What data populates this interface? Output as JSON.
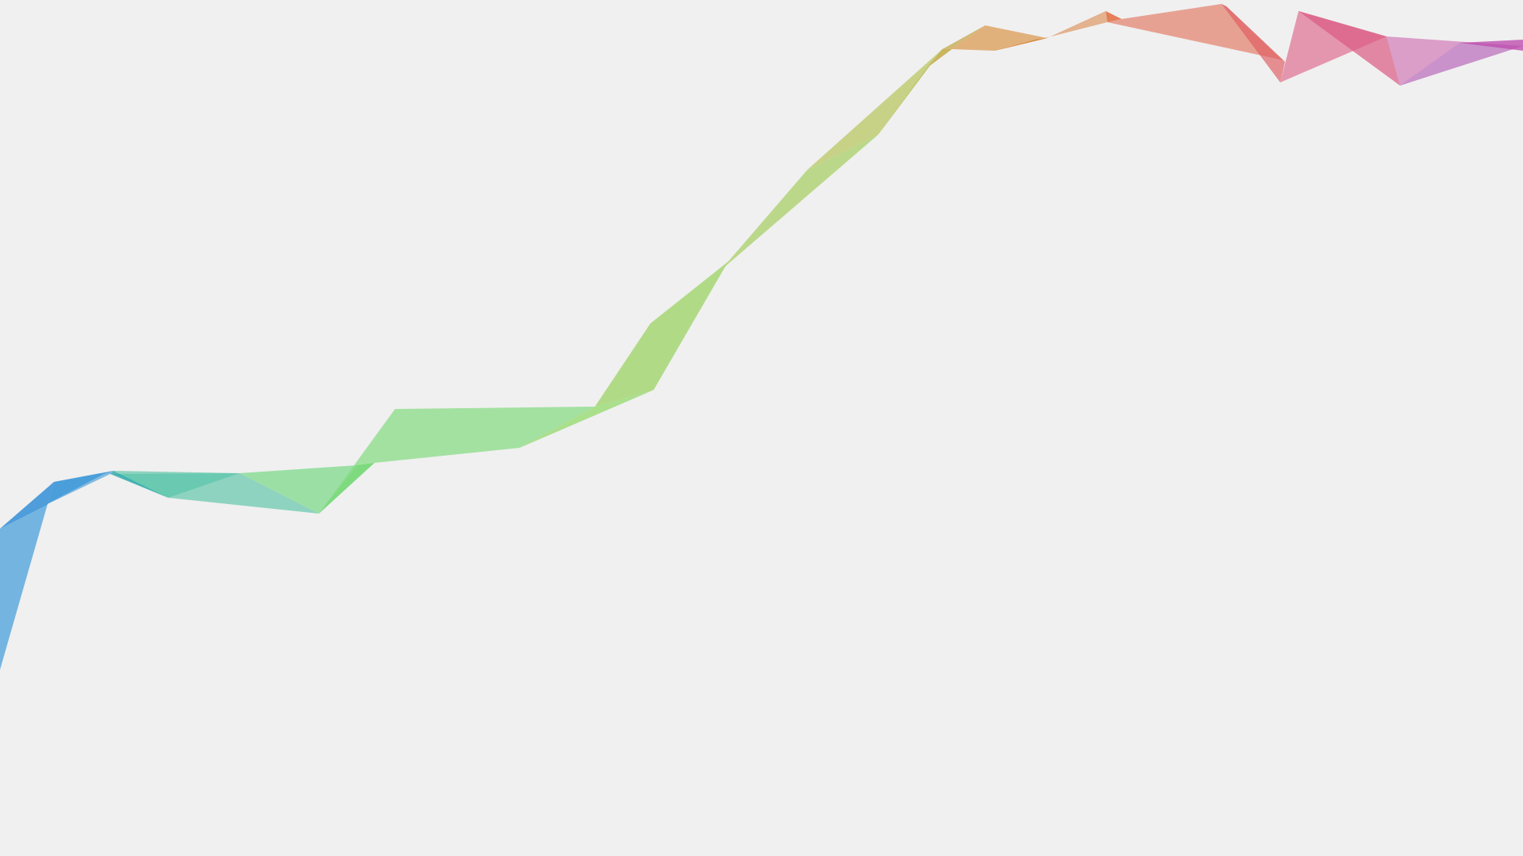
{
  "background": "#f0f0f0",
  "colors": {
    "blue": "#2a97e4",
    "teal": "#6fd6b7",
    "green": "#6fe36f",
    "lime": "#a6e06a",
    "olive": "#c6d46a",
    "orange": "#e8a050",
    "salmon": "#f28a74",
    "red": "#ee5f66",
    "pink": "#ec6b93",
    "orchid": "#dd7fc3",
    "magenta": "#cc55bb"
  },
  "shapes": [
    {
      "name": "ribbon-blue",
      "color": "#2a97e4"
    },
    {
      "name": "ribbon-teal",
      "color": "#6fd6b7"
    },
    {
      "name": "ribbon-green",
      "color": "#6fe36f"
    },
    {
      "name": "ribbon-lime",
      "color": "#a6e06a"
    },
    {
      "name": "ribbon-olive",
      "color": "#c6d46a"
    },
    {
      "name": "ribbon-orange",
      "color": "#e8a050"
    },
    {
      "name": "ribbon-salmon",
      "color": "#f28a74"
    },
    {
      "name": "ribbon-red",
      "color": "#ee5f66"
    },
    {
      "name": "ribbon-pink",
      "color": "#ec6b93"
    },
    {
      "name": "ribbon-orchid",
      "color": "#dd7fc3"
    },
    {
      "name": "ribbon-magenta",
      "color": "#cc55bb"
    }
  ]
}
